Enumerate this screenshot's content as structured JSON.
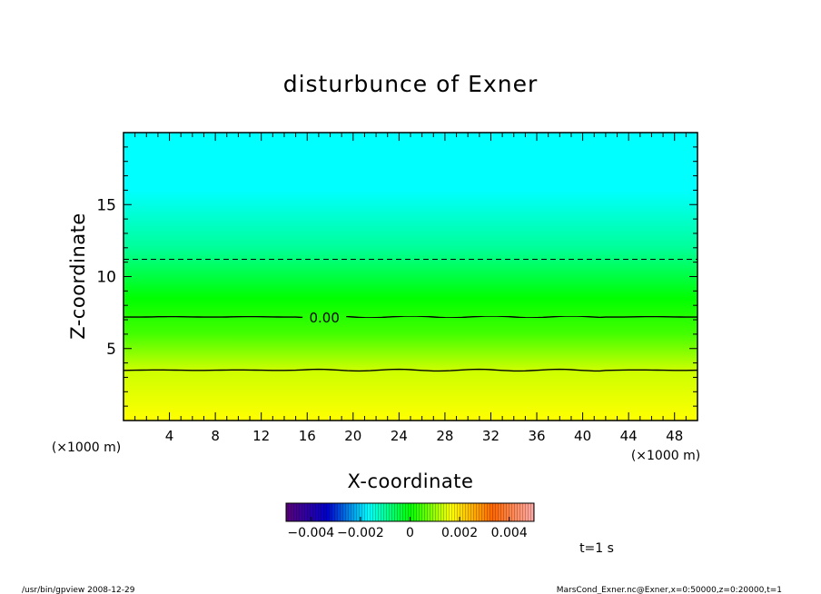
{
  "chart_data": {
    "type": "heatmap",
    "title": "disturbunce of Exner",
    "xlabel": "X-coordinate",
    "ylabel": "Z-coordinate",
    "x_unit": "(×1000 m)",
    "y_unit": "(×1000 m)",
    "xlim": [
      0,
      50
    ],
    "ylim": [
      0,
      20
    ],
    "x_ticks": [
      4,
      8,
      12,
      16,
      20,
      24,
      28,
      32,
      36,
      40,
      44,
      48
    ],
    "x_tick_labels": [
      "4",
      "8",
      "12",
      "16",
      "20",
      "24",
      "28",
      "32",
      "36",
      "40",
      "44",
      "48"
    ],
    "y_ticks": [
      5,
      10,
      15
    ],
    "y_tick_labels": [
      "5",
      "10",
      "15"
    ],
    "color_scale": {
      "vmin": -0.005,
      "vmax": 0.005,
      "tick_values": [
        -0.004,
        -0.002,
        0,
        0.002,
        0.004
      ],
      "tick_labels": [
        "−0.004",
        "−0.002",
        "0",
        "0.002",
        "0.004"
      ],
      "stops": [
        "#5a007a",
        "#0000cc",
        "#00ffff",
        "#00ff00",
        "#ffff00",
        "#ff6600",
        "#ffaaaa"
      ]
    },
    "field_color_levels": [
      {
        "z": 0,
        "color": "#ffff00"
      },
      {
        "z": 3.5,
        "color": "#ccff00"
      },
      {
        "z": 6,
        "color": "#44ff00"
      },
      {
        "z": 8.5,
        "color": "#00ff00"
      },
      {
        "z": 12,
        "color": "#00ff99"
      },
      {
        "z": 16,
        "color": "#00ffff"
      },
      {
        "z": 20,
        "color": "#00ffff"
      }
    ],
    "contours": [
      {
        "z": 11.2,
        "style": "dashed",
        "label": ""
      },
      {
        "z": 7.2,
        "style": "solid",
        "label": "0.00",
        "label_x": 17.5
      },
      {
        "z": 3.5,
        "style": "solid",
        "label": ""
      }
    ],
    "time_label": "t=1  s"
  },
  "footer": {
    "left": "/usr/bin/gpview   2008-12-29",
    "right": "MarsCond_Exner.nc@Exner,x=0:50000,z=0:20000,t=1"
  }
}
